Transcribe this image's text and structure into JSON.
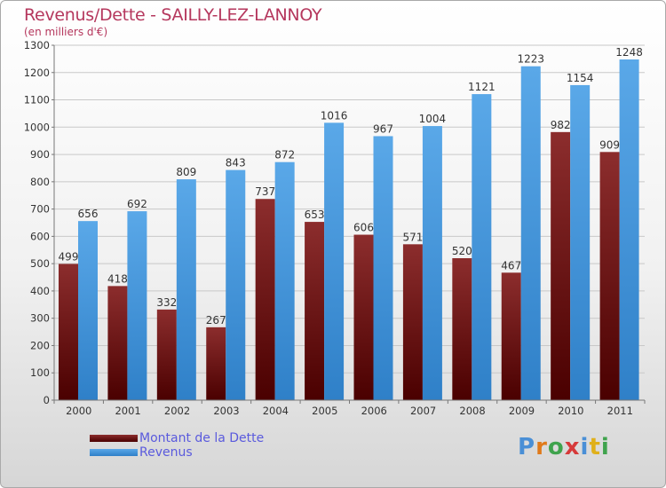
{
  "title": "Revenus/Dette - SAILLY-LEZ-LANNOY",
  "subtitle": "(en milliers d'€)",
  "chart_data": {
    "type": "bar",
    "title": "Revenus/Dette - SAILLY-LEZ-LANNOY",
    "subtitle": "(en milliers d'€)",
    "categories": [
      "2000",
      "2001",
      "2002",
      "2003",
      "2004",
      "2005",
      "2006",
      "2007",
      "2008",
      "2009",
      "2010",
      "2011"
    ],
    "series": [
      {
        "name": "Montant de la Dette",
        "color": "#7a1c1c",
        "values": [
          499,
          418,
          332,
          267,
          737,
          653,
          606,
          571,
          520,
          467,
          982,
          909
        ]
      },
      {
        "name": "Revenus",
        "color": "#4a9fe0",
        "values": [
          656,
          692,
          809,
          843,
          872,
          1016,
          967,
          1004,
          1121,
          1223,
          1154,
          1248
        ]
      }
    ],
    "ylim": [
      0,
      1300
    ],
    "yticks": [
      0,
      100,
      200,
      300,
      400,
      500,
      600,
      700,
      800,
      900,
      1000,
      1100,
      1200,
      1300
    ],
    "grid": true,
    "legend_position": "bottom-left"
  },
  "legend": [
    {
      "label": "Montant de la Dette",
      "color": "#6b0f0f"
    },
    {
      "label": "Revenus",
      "color": "#4a9fe0"
    }
  ],
  "logo": {
    "text": "Proxiti"
  }
}
